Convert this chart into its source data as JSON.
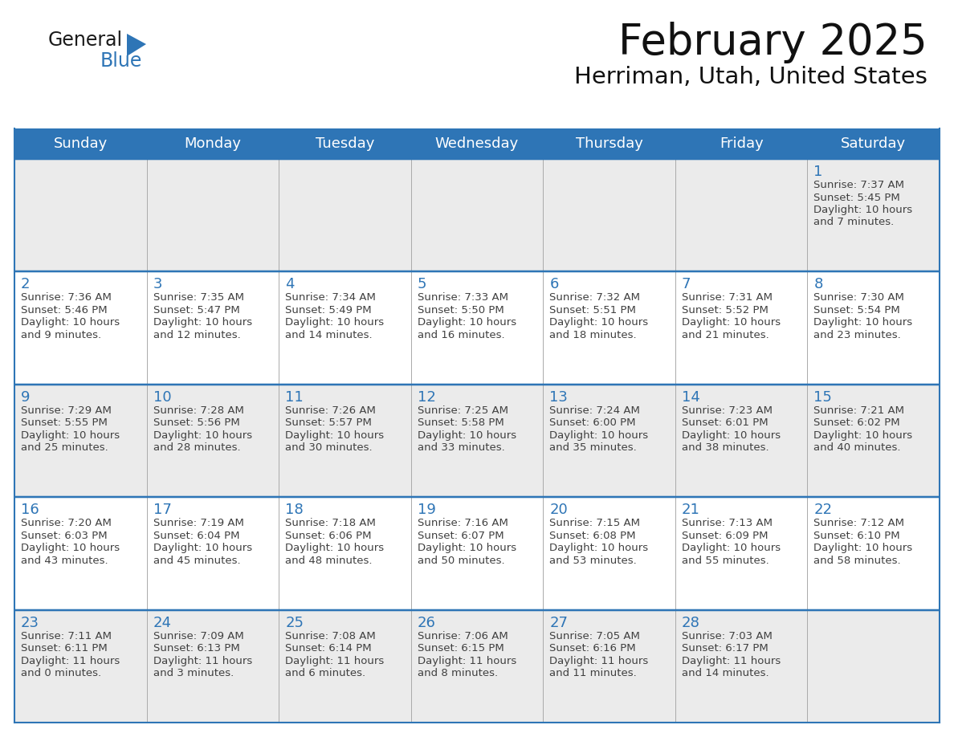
{
  "title": "February 2025",
  "subtitle": "Herriman, Utah, United States",
  "days_of_week": [
    "Sunday",
    "Monday",
    "Tuesday",
    "Wednesday",
    "Thursday",
    "Friday",
    "Saturday"
  ],
  "header_bg": "#2E75B6",
  "header_text": "#FFFFFF",
  "cell_bg_gray": "#EBEBEB",
  "cell_bg_white": "#FFFFFF",
  "border_color": "#2E75B6",
  "day_number_color": "#2E75B6",
  "text_color": "#404040",
  "logo_general_color": "#1a1a1a",
  "logo_blue_color": "#2E75B6",
  "weeks": [
    [
      null,
      null,
      null,
      null,
      null,
      null,
      1
    ],
    [
      2,
      3,
      4,
      5,
      6,
      7,
      8
    ],
    [
      9,
      10,
      11,
      12,
      13,
      14,
      15
    ],
    [
      16,
      17,
      18,
      19,
      20,
      21,
      22
    ],
    [
      23,
      24,
      25,
      26,
      27,
      28,
      null
    ]
  ],
  "cell_data": {
    "1": {
      "sunrise": "7:37 AM",
      "sunset": "5:45 PM",
      "daylight_line1": "Daylight: 10 hours",
      "daylight_line2": "and 7 minutes."
    },
    "2": {
      "sunrise": "7:36 AM",
      "sunset": "5:46 PM",
      "daylight_line1": "Daylight: 10 hours",
      "daylight_line2": "and 9 minutes."
    },
    "3": {
      "sunrise": "7:35 AM",
      "sunset": "5:47 PM",
      "daylight_line1": "Daylight: 10 hours",
      "daylight_line2": "and 12 minutes."
    },
    "4": {
      "sunrise": "7:34 AM",
      "sunset": "5:49 PM",
      "daylight_line1": "Daylight: 10 hours",
      "daylight_line2": "and 14 minutes."
    },
    "5": {
      "sunrise": "7:33 AM",
      "sunset": "5:50 PM",
      "daylight_line1": "Daylight: 10 hours",
      "daylight_line2": "and 16 minutes."
    },
    "6": {
      "sunrise": "7:32 AM",
      "sunset": "5:51 PM",
      "daylight_line1": "Daylight: 10 hours",
      "daylight_line2": "and 18 minutes."
    },
    "7": {
      "sunrise": "7:31 AM",
      "sunset": "5:52 PM",
      "daylight_line1": "Daylight: 10 hours",
      "daylight_line2": "and 21 minutes."
    },
    "8": {
      "sunrise": "7:30 AM",
      "sunset": "5:54 PM",
      "daylight_line1": "Daylight: 10 hours",
      "daylight_line2": "and 23 minutes."
    },
    "9": {
      "sunrise": "7:29 AM",
      "sunset": "5:55 PM",
      "daylight_line1": "Daylight: 10 hours",
      "daylight_line2": "and 25 minutes."
    },
    "10": {
      "sunrise": "7:28 AM",
      "sunset": "5:56 PM",
      "daylight_line1": "Daylight: 10 hours",
      "daylight_line2": "and 28 minutes."
    },
    "11": {
      "sunrise": "7:26 AM",
      "sunset": "5:57 PM",
      "daylight_line1": "Daylight: 10 hours",
      "daylight_line2": "and 30 minutes."
    },
    "12": {
      "sunrise": "7:25 AM",
      "sunset": "5:58 PM",
      "daylight_line1": "Daylight: 10 hours",
      "daylight_line2": "and 33 minutes."
    },
    "13": {
      "sunrise": "7:24 AM",
      "sunset": "6:00 PM",
      "daylight_line1": "Daylight: 10 hours",
      "daylight_line2": "and 35 minutes."
    },
    "14": {
      "sunrise": "7:23 AM",
      "sunset": "6:01 PM",
      "daylight_line1": "Daylight: 10 hours",
      "daylight_line2": "and 38 minutes."
    },
    "15": {
      "sunrise": "7:21 AM",
      "sunset": "6:02 PM",
      "daylight_line1": "Daylight: 10 hours",
      "daylight_line2": "and 40 minutes."
    },
    "16": {
      "sunrise": "7:20 AM",
      "sunset": "6:03 PM",
      "daylight_line1": "Daylight: 10 hours",
      "daylight_line2": "and 43 minutes."
    },
    "17": {
      "sunrise": "7:19 AM",
      "sunset": "6:04 PM",
      "daylight_line1": "Daylight: 10 hours",
      "daylight_line2": "and 45 minutes."
    },
    "18": {
      "sunrise": "7:18 AM",
      "sunset": "6:06 PM",
      "daylight_line1": "Daylight: 10 hours",
      "daylight_line2": "and 48 minutes."
    },
    "19": {
      "sunrise": "7:16 AM",
      "sunset": "6:07 PM",
      "daylight_line1": "Daylight: 10 hours",
      "daylight_line2": "and 50 minutes."
    },
    "20": {
      "sunrise": "7:15 AM",
      "sunset": "6:08 PM",
      "daylight_line1": "Daylight: 10 hours",
      "daylight_line2": "and 53 minutes."
    },
    "21": {
      "sunrise": "7:13 AM",
      "sunset": "6:09 PM",
      "daylight_line1": "Daylight: 10 hours",
      "daylight_line2": "and 55 minutes."
    },
    "22": {
      "sunrise": "7:12 AM",
      "sunset": "6:10 PM",
      "daylight_line1": "Daylight: 10 hours",
      "daylight_line2": "and 58 minutes."
    },
    "23": {
      "sunrise": "7:11 AM",
      "sunset": "6:11 PM",
      "daylight_line1": "Daylight: 11 hours",
      "daylight_line2": "and 0 minutes."
    },
    "24": {
      "sunrise": "7:09 AM",
      "sunset": "6:13 PM",
      "daylight_line1": "Daylight: 11 hours",
      "daylight_line2": "and 3 minutes."
    },
    "25": {
      "sunrise": "7:08 AM",
      "sunset": "6:14 PM",
      "daylight_line1": "Daylight: 11 hours",
      "daylight_line2": "and 6 minutes."
    },
    "26": {
      "sunrise": "7:06 AM",
      "sunset": "6:15 PM",
      "daylight_line1": "Daylight: 11 hours",
      "daylight_line2": "and 8 minutes."
    },
    "27": {
      "sunrise": "7:05 AM",
      "sunset": "6:16 PM",
      "daylight_line1": "Daylight: 11 hours",
      "daylight_line2": "and 11 minutes."
    },
    "28": {
      "sunrise": "7:03 AM",
      "sunset": "6:17 PM",
      "daylight_line1": "Daylight: 11 hours",
      "daylight_line2": "and 14 minutes."
    }
  }
}
